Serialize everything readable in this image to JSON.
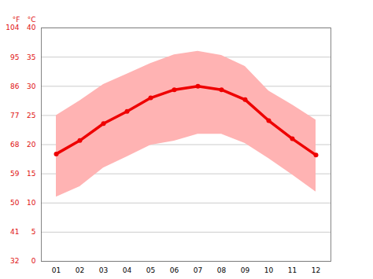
{
  "chart_data": {
    "type": "line",
    "categories": [
      "01",
      "02",
      "03",
      "04",
      "05",
      "06",
      "07",
      "08",
      "09",
      "10",
      "11",
      "12"
    ],
    "series": [
      {
        "color": "#ee0000",
        "marker": "circle",
        "values": [
          18.4,
          20.7,
          23.6,
          25.7,
          28.0,
          29.4,
          30.0,
          29.4,
          27.7,
          24.1,
          21.0,
          18.2
        ]
      }
    ],
    "band": {
      "color": "#ffb3b3",
      "low": [
        11.0,
        12.8,
        16.0,
        17.9,
        19.9,
        20.6,
        21.8,
        21.8,
        20.2,
        17.6,
        14.8,
        11.9
      ],
      "high": [
        25.0,
        27.5,
        30.3,
        32.1,
        33.9,
        35.4,
        36.0,
        35.3,
        33.4,
        29.2,
        26.8,
        24.2
      ]
    },
    "y_label": "°C",
    "ylim": [
      0,
      40
    ],
    "yticks": [
      0,
      5,
      10,
      15,
      20,
      25,
      30,
      35,
      40
    ],
    "y2_label": "°F",
    "y2lim": [
      32,
      104
    ],
    "y2ticks": [
      32,
      41,
      50,
      59,
      68,
      77,
      86,
      95,
      104
    ],
    "grid": true
  }
}
